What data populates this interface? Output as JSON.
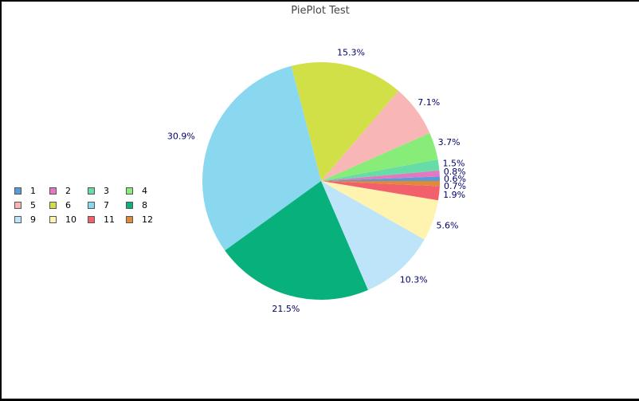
{
  "chart_data": {
    "type": "pie",
    "title": "PiePlot Test",
    "start_angle_deg": 0,
    "direction": "counterclockwise",
    "legend_position": "left",
    "slices": [
      {
        "label": "1",
        "value": 0.6,
        "pct_label": "0.6%",
        "color": "#5b9bd5"
      },
      {
        "label": "2",
        "value": 0.8,
        "pct_label": "0.8%",
        "color": "#e377c2"
      },
      {
        "label": "3",
        "value": 1.5,
        "pct_label": "1.5%",
        "color": "#66dda6"
      },
      {
        "label": "4",
        "value": 3.7,
        "pct_label": "3.7%",
        "color": "#88ec78"
      },
      {
        "label": "5",
        "value": 7.1,
        "pct_label": "7.1%",
        "color": "#f8b7b6"
      },
      {
        "label": "6",
        "value": 15.3,
        "pct_label": "15.3%",
        "color": "#d2e048"
      },
      {
        "label": "7",
        "value": 30.9,
        "pct_label": "30.9%",
        "color": "#8ad8f0"
      },
      {
        "label": "8",
        "value": 21.5,
        "pct_label": "21.5%",
        "color": "#08b17b"
      },
      {
        "label": "9",
        "value": 10.3,
        "pct_label": "10.3%",
        "color": "#bde4f8"
      },
      {
        "label": "10",
        "value": 5.6,
        "pct_label": "5.6%",
        "color": "#fff3b0"
      },
      {
        "label": "11",
        "value": 1.9,
        "pct_label": "1.9%",
        "color": "#f2606b"
      },
      {
        "label": "12",
        "value": 0.7,
        "pct_label": "0.7%",
        "color": "#e08a38"
      }
    ]
  }
}
